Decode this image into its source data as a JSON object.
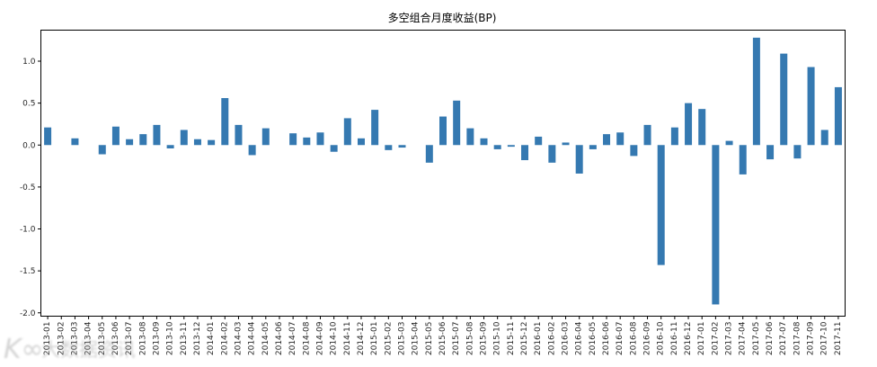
{
  "chart_data": {
    "type": "bar",
    "title": "多空组合月度收益(BP)",
    "xlabel": "",
    "ylabel": "",
    "bar_color": "#3579b1",
    "ylim": [
      -2.04,
      1.37
    ],
    "yticks": [
      1.0,
      0.5,
      0.0,
      -0.5,
      -1.0,
      -1.5,
      -2.0
    ],
    "grid": false,
    "legend": "none",
    "x_label_rotation": 90,
    "categories": [
      "2013-01",
      "2013-02",
      "2013-03",
      "2013-04",
      "2013-05",
      "2013-06",
      "2013-07",
      "2013-08",
      "2013-09",
      "2013-10",
      "2013-11",
      "2013-12",
      "2014-01",
      "2014-02",
      "2014-03",
      "2014-04",
      "2014-05",
      "2014-06",
      "2014-07",
      "2014-08",
      "2014-09",
      "2014-10",
      "2014-11",
      "2014-12",
      "2015-01",
      "2015-02",
      "2015-03",
      "2015-04",
      "2015-05",
      "2015-06",
      "2015-07",
      "2015-08",
      "2015-09",
      "2015-10",
      "2015-11",
      "2015-12",
      "2016-01",
      "2016-02",
      "2016-03",
      "2016-04",
      "2016-05",
      "2016-06",
      "2016-07",
      "2016-08",
      "2016-09",
      "2016-10",
      "2016-11",
      "2016-12",
      "2017-01",
      "2017-02",
      "2017-03",
      "2017-04",
      "2017-05",
      "2017-06",
      "2017-07",
      "2017-08",
      "2017-09",
      "2017-10",
      "2017-11"
    ],
    "values": [
      0.21,
      0.0,
      0.08,
      0.0,
      -0.11,
      0.22,
      0.07,
      0.13,
      0.24,
      -0.04,
      0.18,
      0.07,
      0.06,
      0.56,
      0.24,
      -0.12,
      0.2,
      0.0,
      0.14,
      0.09,
      0.15,
      -0.08,
      0.32,
      0.08,
      0.42,
      -0.06,
      -0.03,
      0.0,
      -0.21,
      0.34,
      0.53,
      0.2,
      0.08,
      -0.05,
      -0.02,
      -0.18,
      0.1,
      -0.21,
      0.03,
      -0.34,
      -0.05,
      0.13,
      0.15,
      -0.13,
      0.24,
      -1.43,
      0.21,
      0.5,
      0.43,
      -1.9,
      0.05,
      -0.35,
      1.28,
      -0.17,
      1.09,
      -0.16,
      0.93,
      0.18,
      0.69
    ]
  },
  "watermark": {
    "logo": "K∞",
    "text": "大数据资讯"
  }
}
